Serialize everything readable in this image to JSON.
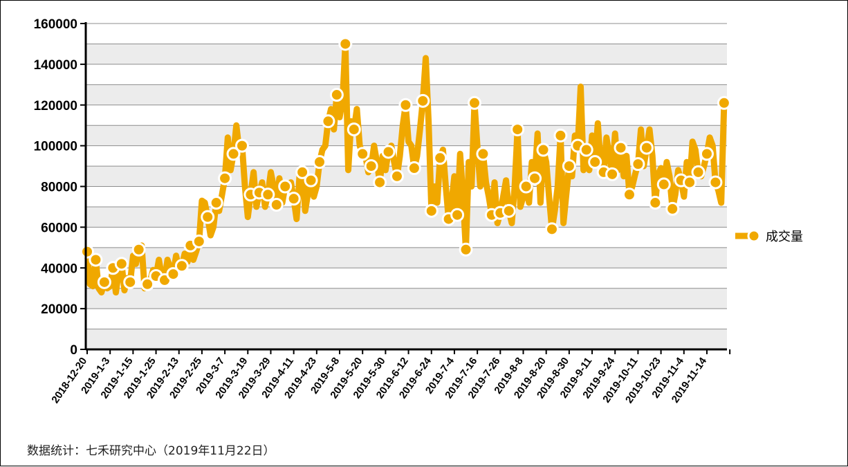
{
  "chart_data": {
    "type": "line",
    "ylim": [
      0,
      160000
    ],
    "yticks": [
      0,
      20000,
      40000,
      60000,
      80000,
      100000,
      120000,
      140000,
      160000
    ],
    "grid": true,
    "legend_position": "right",
    "x_tick_labels": [
      "2018-12-20",
      "2019-1-3",
      "2019-1-15",
      "2019-1-25",
      "2019-2-13",
      "2019-2-25",
      "2019-3-7",
      "2019-3-19",
      "2019-3-29",
      "2019-4-11",
      "2019-4-23",
      "2019-5-8",
      "2019-5-20",
      "2019-5-30",
      "2019-6-12",
      "2019-6-24",
      "2019-7-4",
      "2019-7-16",
      "2019-7-26",
      "2019-8-8",
      "2019-8-20",
      "2019-8-30",
      "2019-9-11",
      "2019-9-24",
      "2019-10-11",
      "2019-10-23",
      "2019-11-4",
      "2019-11-14"
    ],
    "series": [
      {
        "name": "成交量",
        "color": "#f0a800",
        "marker_points": [
          {
            "i": 0,
            "v": 48000
          },
          {
            "i": 3,
            "v": 44000
          },
          {
            "i": 6,
            "v": 33000
          },
          {
            "i": 9,
            "v": 40000
          },
          {
            "i": 12,
            "v": 42000
          },
          {
            "i": 15,
            "v": 33000
          },
          {
            "i": 18,
            "v": 49000
          },
          {
            "i": 21,
            "v": 32000
          },
          {
            "i": 24,
            "v": 36000
          },
          {
            "i": 27,
            "v": 34000
          },
          {
            "i": 30,
            "v": 37000
          },
          {
            "i": 33,
            "v": 41000
          },
          {
            "i": 36,
            "v": 51000
          },
          {
            "i": 39,
            "v": 53000
          },
          {
            "i": 42,
            "v": 65000
          },
          {
            "i": 45,
            "v": 72000
          },
          {
            "i": 48,
            "v": 84000
          },
          {
            "i": 51,
            "v": 96000
          },
          {
            "i": 54,
            "v": 100000
          },
          {
            "i": 57,
            "v": 76000
          },
          {
            "i": 60,
            "v": 77000
          },
          {
            "i": 63,
            "v": 76000
          },
          {
            "i": 66,
            "v": 71000
          },
          {
            "i": 69,
            "v": 80000
          },
          {
            "i": 72,
            "v": 74000
          },
          {
            "i": 75,
            "v": 87000
          },
          {
            "i": 78,
            "v": 83000
          },
          {
            "i": 81,
            "v": 92000
          },
          {
            "i": 84,
            "v": 112000
          },
          {
            "i": 87,
            "v": 125000
          },
          {
            "i": 90,
            "v": 150000
          },
          {
            "i": 93,
            "v": 108000
          },
          {
            "i": 96,
            "v": 96000
          },
          {
            "i": 99,
            "v": 90000
          },
          {
            "i": 102,
            "v": 82000
          },
          {
            "i": 105,
            "v": 97000
          },
          {
            "i": 108,
            "v": 85000
          },
          {
            "i": 111,
            "v": 120000
          },
          {
            "i": 114,
            "v": 89000
          },
          {
            "i": 117,
            "v": 122000
          },
          {
            "i": 120,
            "v": 68000
          },
          {
            "i": 123,
            "v": 94000
          },
          {
            "i": 126,
            "v": 64000
          },
          {
            "i": 129,
            "v": 66000
          },
          {
            "i": 132,
            "v": 49000
          },
          {
            "i": 135,
            "v": 121000
          },
          {
            "i": 138,
            "v": 96000
          },
          {
            "i": 141,
            "v": 66000
          },
          {
            "i": 144,
            "v": 67000
          },
          {
            "i": 147,
            "v": 68000
          },
          {
            "i": 150,
            "v": 108000
          },
          {
            "i": 153,
            "v": 80000
          },
          {
            "i": 156,
            "v": 84000
          },
          {
            "i": 159,
            "v": 98000
          },
          {
            "i": 162,
            "v": 59000
          },
          {
            "i": 165,
            "v": 105000
          },
          {
            "i": 168,
            "v": 90000
          },
          {
            "i": 171,
            "v": 100000
          },
          {
            "i": 174,
            "v": 98000
          },
          {
            "i": 177,
            "v": 92000
          },
          {
            "i": 180,
            "v": 87000
          },
          {
            "i": 183,
            "v": 86000
          },
          {
            "i": 186,
            "v": 99000
          },
          {
            "i": 189,
            "v": 76000
          },
          {
            "i": 192,
            "v": 91000
          },
          {
            "i": 195,
            "v": 99000
          },
          {
            "i": 198,
            "v": 72000
          },
          {
            "i": 201,
            "v": 81000
          },
          {
            "i": 204,
            "v": 69000
          },
          {
            "i": 207,
            "v": 83000
          },
          {
            "i": 210,
            "v": 82000
          },
          {
            "i": 213,
            "v": 87000
          },
          {
            "i": 216,
            "v": 96000
          },
          {
            "i": 219,
            "v": 82000
          },
          {
            "i": 222,
            "v": 121000
          }
        ],
        "intermediate_points": [
          {
            "i": 1,
            "v": 32000
          },
          {
            "i": 2,
            "v": 31000
          },
          {
            "i": 4,
            "v": 30000
          },
          {
            "i": 5,
            "v": 28000
          },
          {
            "i": 7,
            "v": 30000
          },
          {
            "i": 8,
            "v": 31000
          },
          {
            "i": 10,
            "v": 28000
          },
          {
            "i": 11,
            "v": 38000
          },
          {
            "i": 13,
            "v": 29000
          },
          {
            "i": 14,
            "v": 35000
          },
          {
            "i": 16,
            "v": 46000
          },
          {
            "i": 17,
            "v": 42000
          },
          {
            "i": 19,
            "v": 51000
          },
          {
            "i": 20,
            "v": 30000
          },
          {
            "i": 22,
            "v": 34000
          },
          {
            "i": 23,
            "v": 39000
          },
          {
            "i": 25,
            "v": 44000
          },
          {
            "i": 26,
            "v": 36000
          },
          {
            "i": 28,
            "v": 44000
          },
          {
            "i": 29,
            "v": 40000
          },
          {
            "i": 31,
            "v": 46000
          },
          {
            "i": 32,
            "v": 40000
          },
          {
            "i": 34,
            "v": 47000
          },
          {
            "i": 35,
            "v": 43000
          },
          {
            "i": 37,
            "v": 44000
          },
          {
            "i": 38,
            "v": 48000
          },
          {
            "i": 40,
            "v": 73000
          },
          {
            "i": 41,
            "v": 72000
          },
          {
            "i": 43,
            "v": 56000
          },
          {
            "i": 44,
            "v": 60000
          },
          {
            "i": 46,
            "v": 68000
          },
          {
            "i": 47,
            "v": 76000
          },
          {
            "i": 49,
            "v": 104000
          },
          {
            "i": 50,
            "v": 88000
          },
          {
            "i": 52,
            "v": 110000
          },
          {
            "i": 53,
            "v": 98000
          },
          {
            "i": 55,
            "v": 80000
          },
          {
            "i": 56,
            "v": 65000
          },
          {
            "i": 58,
            "v": 87000
          },
          {
            "i": 59,
            "v": 70000
          },
          {
            "i": 61,
            "v": 82000
          },
          {
            "i": 62,
            "v": 70000
          },
          {
            "i": 64,
            "v": 87000
          },
          {
            "i": 65,
            "v": 80000
          },
          {
            "i": 67,
            "v": 84000
          },
          {
            "i": 68,
            "v": 72000
          },
          {
            "i": 70,
            "v": 79000
          },
          {
            "i": 71,
            "v": 82000
          },
          {
            "i": 73,
            "v": 64000
          },
          {
            "i": 74,
            "v": 85000
          },
          {
            "i": 76,
            "v": 68000
          },
          {
            "i": 77,
            "v": 77000
          },
          {
            "i": 79,
            "v": 75000
          },
          {
            "i": 80,
            "v": 80000
          },
          {
            "i": 82,
            "v": 98000
          },
          {
            "i": 83,
            "v": 100000
          },
          {
            "i": 85,
            "v": 118000
          },
          {
            "i": 86,
            "v": 108000
          },
          {
            "i": 88,
            "v": 114000
          },
          {
            "i": 89,
            "v": 122000
          },
          {
            "i": 91,
            "v": 88000
          },
          {
            "i": 92,
            "v": 112000
          },
          {
            "i": 94,
            "v": 118000
          },
          {
            "i": 95,
            "v": 100000
          },
          {
            "i": 97,
            "v": 95000
          },
          {
            "i": 98,
            "v": 87000
          },
          {
            "i": 100,
            "v": 100000
          },
          {
            "i": 101,
            "v": 92000
          },
          {
            "i": 103,
            "v": 95000
          },
          {
            "i": 104,
            "v": 88000
          },
          {
            "i": 106,
            "v": 100000
          },
          {
            "i": 107,
            "v": 92000
          },
          {
            "i": 109,
            "v": 95000
          },
          {
            "i": 110,
            "v": 110000
          },
          {
            "i": 112,
            "v": 102000
          },
          {
            "i": 113,
            "v": 100000
          },
          {
            "i": 115,
            "v": 95000
          },
          {
            "i": 116,
            "v": 108000
          },
          {
            "i": 118,
            "v": 143000
          },
          {
            "i": 119,
            "v": 112000
          },
          {
            "i": 121,
            "v": 80000
          },
          {
            "i": 122,
            "v": 72000
          },
          {
            "i": 124,
            "v": 98000
          },
          {
            "i": 125,
            "v": 80000
          },
          {
            "i": 127,
            "v": 72000
          },
          {
            "i": 128,
            "v": 85000
          },
          {
            "i": 130,
            "v": 96000
          },
          {
            "i": 131,
            "v": 75000
          },
          {
            "i": 133,
            "v": 92000
          },
          {
            "i": 134,
            "v": 80000
          },
          {
            "i": 136,
            "v": 100000
          },
          {
            "i": 137,
            "v": 80000
          },
          {
            "i": 139,
            "v": 82000
          },
          {
            "i": 140,
            "v": 75000
          },
          {
            "i": 142,
            "v": 82000
          },
          {
            "i": 143,
            "v": 62000
          },
          {
            "i": 145,
            "v": 75000
          },
          {
            "i": 146,
            "v": 83000
          },
          {
            "i": 148,
            "v": 62000
          },
          {
            "i": 149,
            "v": 80000
          },
          {
            "i": 151,
            "v": 70000
          },
          {
            "i": 152,
            "v": 75000
          },
          {
            "i": 154,
            "v": 72000
          },
          {
            "i": 155,
            "v": 92000
          },
          {
            "i": 157,
            "v": 106000
          },
          {
            "i": 158,
            "v": 72000
          },
          {
            "i": 160,
            "v": 92000
          },
          {
            "i": 161,
            "v": 75000
          },
          {
            "i": 163,
            "v": 68000
          },
          {
            "i": 164,
            "v": 80000
          },
          {
            "i": 166,
            "v": 62000
          },
          {
            "i": 167,
            "v": 76000
          },
          {
            "i": 169,
            "v": 85000
          },
          {
            "i": 170,
            "v": 105000
          },
          {
            "i": 172,
            "v": 129000
          },
          {
            "i": 173,
            "v": 88000
          },
          {
            "i": 175,
            "v": 88000
          },
          {
            "i": 176,
            "v": 105000
          },
          {
            "i": 178,
            "v": 111000
          },
          {
            "i": 179,
            "v": 90000
          },
          {
            "i": 181,
            "v": 104000
          },
          {
            "i": 182,
            "v": 95000
          },
          {
            "i": 184,
            "v": 106000
          },
          {
            "i": 185,
            "v": 88000
          },
          {
            "i": 187,
            "v": 85000
          },
          {
            "i": 188,
            "v": 95000
          },
          {
            "i": 190,
            "v": 80000
          },
          {
            "i": 191,
            "v": 86000
          },
          {
            "i": 193,
            "v": 108000
          },
          {
            "i": 194,
            "v": 90000
          },
          {
            "i": 196,
            "v": 108000
          },
          {
            "i": 197,
            "v": 95000
          },
          {
            "i": 199,
            "v": 86000
          },
          {
            "i": 200,
            "v": 89000
          },
          {
            "i": 202,
            "v": 92000
          },
          {
            "i": 203,
            "v": 85000
          },
          {
            "i": 205,
            "v": 76000
          },
          {
            "i": 206,
            "v": 88000
          },
          {
            "i": 208,
            "v": 75000
          },
          {
            "i": 209,
            "v": 92000
          },
          {
            "i": 211,
            "v": 102000
          },
          {
            "i": 212,
            "v": 98000
          },
          {
            "i": 214,
            "v": 85000
          },
          {
            "i": 215,
            "v": 90000
          },
          {
            "i": 217,
            "v": 104000
          },
          {
            "i": 218,
            "v": 100000
          },
          {
            "i": 220,
            "v": 78000
          },
          {
            "i": 221,
            "v": 72000
          }
        ]
      }
    ]
  },
  "footer": {
    "source_note": "数据统计：七禾研究中心（2019年11月22日）"
  }
}
